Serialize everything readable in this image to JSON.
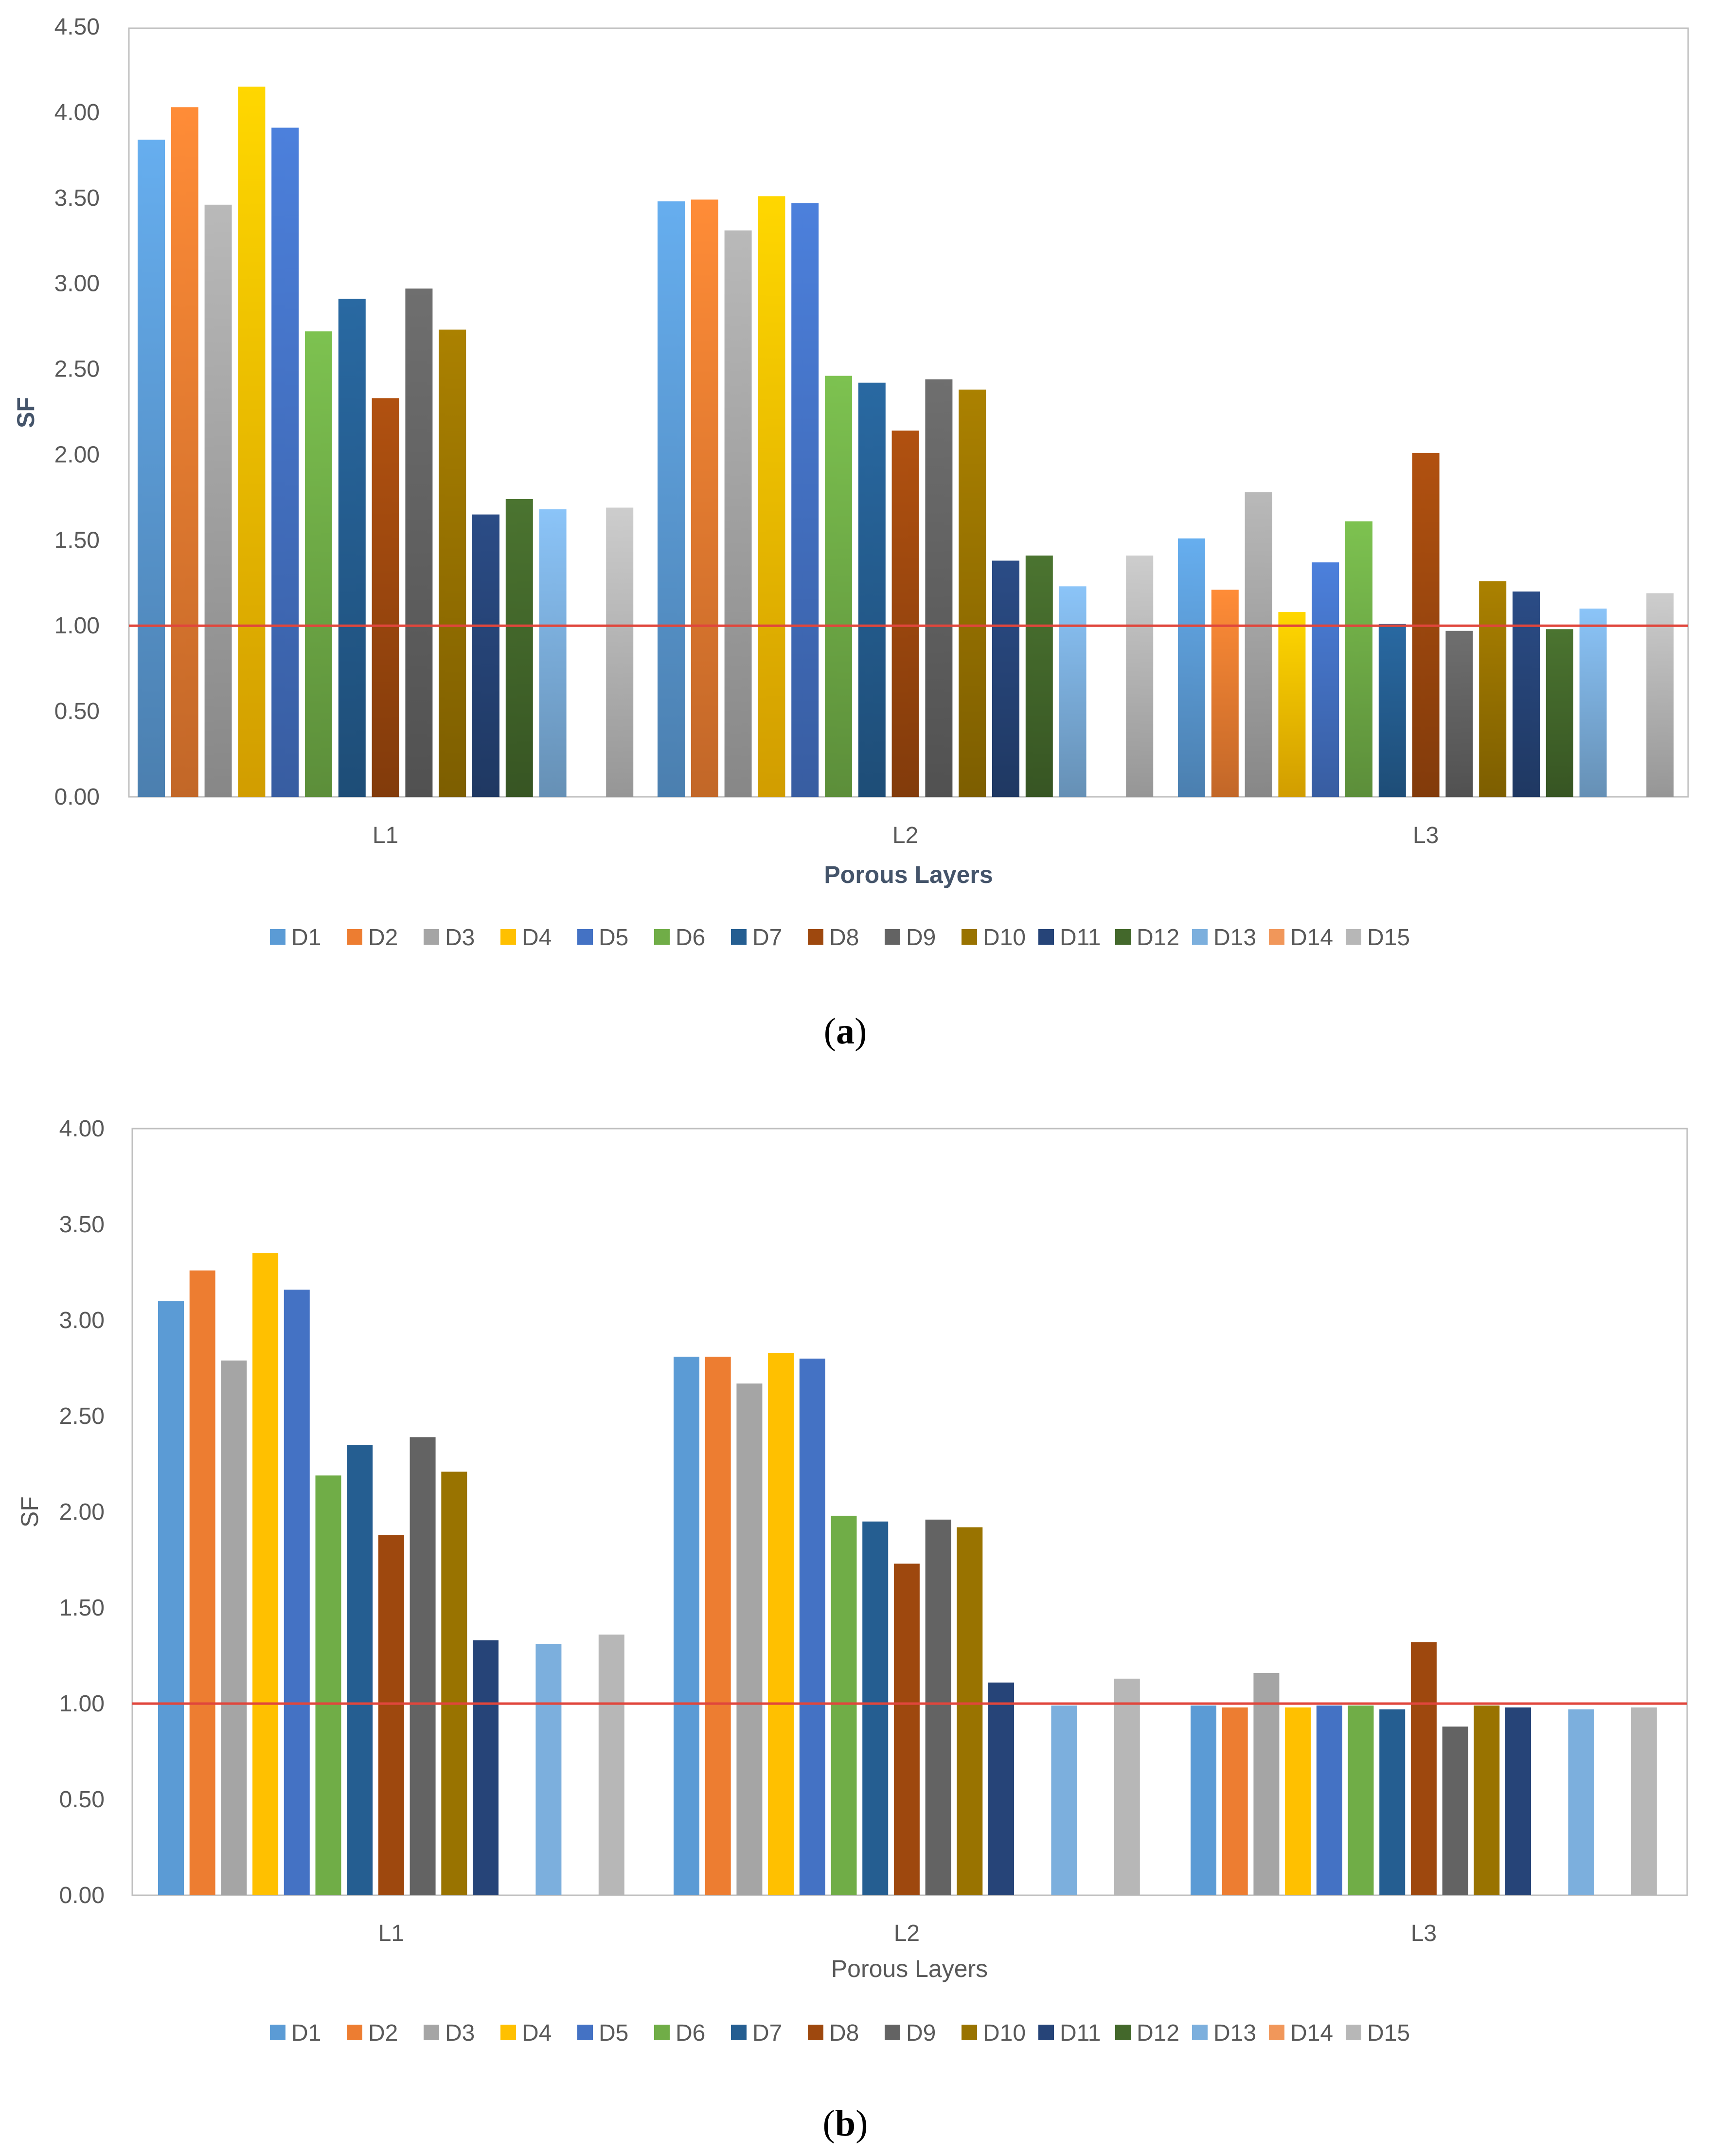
{
  "colors": {
    "D1": "#5b9bd5",
    "D2": "#ed7d31",
    "D3": "#a5a5a5",
    "D4": "#ffc000",
    "D5": "#4472c4",
    "D6": "#70ad47",
    "D7": "#255e91",
    "D8": "#9e480e",
    "D9": "#636363",
    "D10": "#997300",
    "D11": "#264478",
    "D12": "#43682b",
    "D13": "#7cafdd",
    "D14": "#f1975a",
    "D15": "#b7b7b7",
    "reference_line": "#e0463c"
  },
  "chart_data": [
    {
      "id": "a",
      "type": "bar",
      "caption_letter": "a",
      "title": "",
      "xlabel": "Porous Layers",
      "ylabel": "SF",
      "ylim": [
        0,
        4.5
      ],
      "yticks": [
        "0.00",
        "0.50",
        "1.00",
        "1.50",
        "2.00",
        "2.50",
        "3.00",
        "3.50",
        "4.00",
        "4.50"
      ],
      "categories": [
        "L1",
        "L2",
        "L3"
      ],
      "reference_line": 1.0,
      "legend_position": "bottom",
      "series": [
        {
          "name": "D1",
          "values": [
            3.84,
            3.48,
            1.51
          ]
        },
        {
          "name": "D2",
          "values": [
            4.03,
            3.49,
            1.21
          ]
        },
        {
          "name": "D3",
          "values": [
            3.46,
            3.31,
            1.78
          ]
        },
        {
          "name": "D4",
          "values": [
            4.15,
            3.51,
            1.08
          ]
        },
        {
          "name": "D5",
          "values": [
            3.91,
            3.47,
            1.37
          ]
        },
        {
          "name": "D6",
          "values": [
            2.72,
            2.46,
            1.61
          ]
        },
        {
          "name": "D7",
          "values": [
            2.91,
            2.42,
            1.01
          ]
        },
        {
          "name": "D8",
          "values": [
            2.33,
            2.14,
            2.01
          ]
        },
        {
          "name": "D9",
          "values": [
            2.97,
            2.44,
            0.97
          ]
        },
        {
          "name": "D10",
          "values": [
            2.73,
            2.38,
            1.26
          ]
        },
        {
          "name": "D11",
          "values": [
            1.65,
            1.38,
            1.2
          ]
        },
        {
          "name": "D12",
          "values": [
            1.74,
            1.41,
            0.98
          ]
        },
        {
          "name": "D13",
          "values": [
            1.68,
            1.23,
            1.1
          ]
        },
        {
          "name": "D14",
          "values": [
            null,
            null,
            null
          ]
        },
        {
          "name": "D15",
          "values": [
            1.69,
            1.41,
            1.19
          ]
        }
      ]
    },
    {
      "id": "b",
      "type": "bar",
      "caption_letter": "b",
      "title": "",
      "xlabel": "Porous Layers",
      "ylabel": "SF",
      "ylim": [
        0,
        4.0
      ],
      "yticks": [
        "0.00",
        "0.50",
        "1.00",
        "1.50",
        "2.00",
        "2.50",
        "3.00",
        "3.50",
        "4.00"
      ],
      "categories": [
        "L1",
        "L2",
        "L3"
      ],
      "reference_line": 1.0,
      "legend_position": "bottom",
      "series": [
        {
          "name": "D1",
          "values": [
            3.1,
            2.81,
            0.99
          ]
        },
        {
          "name": "D2",
          "values": [
            3.26,
            2.81,
            0.98
          ]
        },
        {
          "name": "D3",
          "values": [
            2.79,
            2.67,
            1.16
          ]
        },
        {
          "name": "D4",
          "values": [
            3.35,
            2.83,
            0.98
          ]
        },
        {
          "name": "D5",
          "values": [
            3.16,
            2.8,
            0.99
          ]
        },
        {
          "name": "D6",
          "values": [
            2.19,
            1.98,
            0.99
          ]
        },
        {
          "name": "D7",
          "values": [
            2.35,
            1.95,
            0.97
          ]
        },
        {
          "name": "D8",
          "values": [
            1.88,
            1.73,
            1.32
          ]
        },
        {
          "name": "D9",
          "values": [
            2.39,
            1.96,
            0.88
          ]
        },
        {
          "name": "D10",
          "values": [
            2.21,
            1.92,
            0.99
          ]
        },
        {
          "name": "D11",
          "values": [
            1.33,
            1.11,
            0.98
          ]
        },
        {
          "name": "D12",
          "values": [
            null,
            null,
            null
          ]
        },
        {
          "name": "D13",
          "values": [
            1.31,
            0.99,
            0.97
          ]
        },
        {
          "name": "D14",
          "values": [
            null,
            null,
            null
          ]
        },
        {
          "name": "D15",
          "values": [
            1.36,
            1.13,
            0.98
          ]
        }
      ]
    }
  ]
}
